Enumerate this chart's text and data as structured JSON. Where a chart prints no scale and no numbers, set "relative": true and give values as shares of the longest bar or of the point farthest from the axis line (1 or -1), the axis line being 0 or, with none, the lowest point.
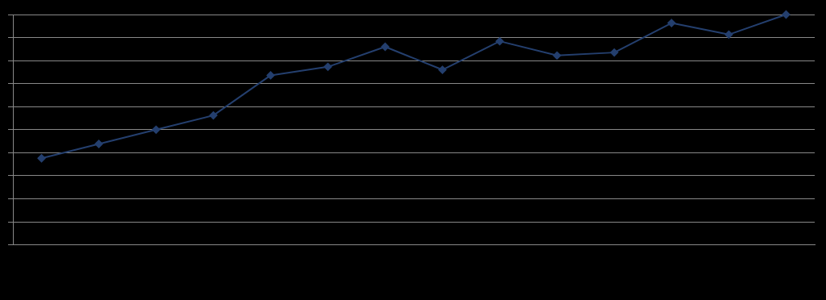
{
  "chart_data": {
    "type": "line",
    "relative": true,
    "categories": [
      null,
      null,
      null,
      null,
      null,
      null,
      null,
      null,
      null,
      null,
      null,
      null,
      null,
      null
    ],
    "series": [
      {
        "color": "#243f6e",
        "values": [
          0.376,
          0.438,
          0.5,
          0.562,
          0.736,
          0.773,
          0.86,
          0.76,
          0.884,
          0.822,
          0.835,
          0.963,
          0.913,
          1
        ]
      }
    ],
    "grid": "y",
    "marker": "diamond",
    "line_style": "solid",
    "legend": false
  }
}
